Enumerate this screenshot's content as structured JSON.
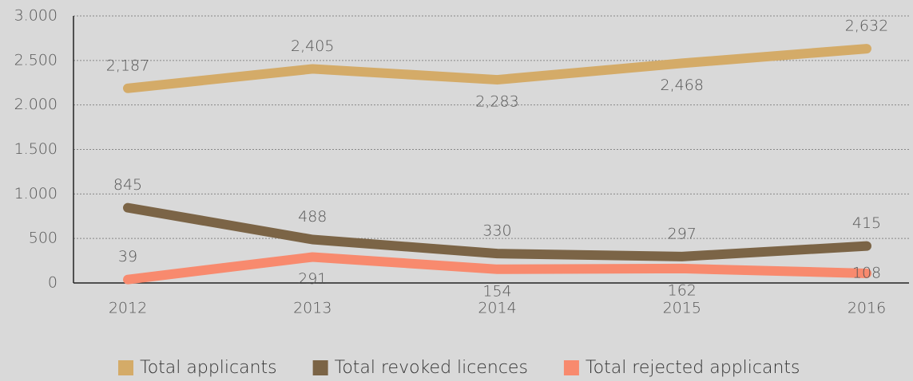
{
  "chart_data": {
    "type": "line",
    "categories": [
      "2012",
      "2013",
      "2014",
      "2015",
      "2016"
    ],
    "series": [
      {
        "name": "Total applicants",
        "color": "#d4ab68",
        "values": [
          2187,
          2405,
          2283,
          2468,
          2632
        ],
        "value_labels": [
          "2,187",
          "2,405",
          "2,283",
          "2,468",
          "2,632"
        ]
      },
      {
        "name": "Total revoked licences",
        "color": "#7b6446",
        "values": [
          845,
          488,
          330,
          297,
          415
        ]
      },
      {
        "name": "Total rejected applicants",
        "color": "#f88a6e",
        "values": [
          39,
          291,
          154,
          162,
          108
        ]
      }
    ],
    "ylim": [
      0,
      3000
    ],
    "yticks": [
      0,
      500,
      {
        "value": 1000,
        "label": "1.000"
      },
      {
        "value": 1500,
        "label": "1.500"
      },
      {
        "value": 2000,
        "label": "2.000"
      },
      {
        "value": 2500,
        "label": "2.500"
      },
      {
        "value": 3000,
        "label": "3.000"
      }
    ],
    "grid": true,
    "legend": "bottom"
  }
}
